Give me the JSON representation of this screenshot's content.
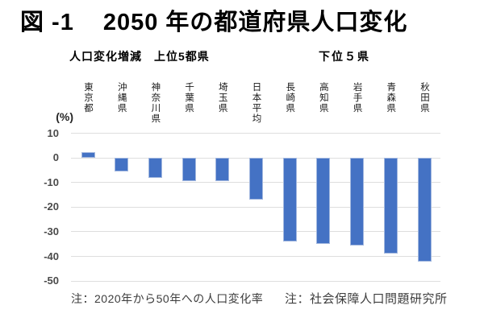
{
  "chart_data": {
    "type": "bar",
    "figure_label": "図 -1",
    "title": "2050 年の都道府県人口変化",
    "group_labels": {
      "left": "人口変化増減　上位5都県",
      "right": "下位５県"
    },
    "unit_label": "(%)",
    "categories": [
      "東京都",
      "沖縄県",
      "神奈川県",
      "千葉県",
      "埼玉県",
      "日本平均",
      "長崎県",
      "高知県",
      "岩手県",
      "青森県",
      "秋田県"
    ],
    "category_slugs": [
      "tokyo",
      "okinawa",
      "kanagawa",
      "chiba",
      "saitama",
      "japan-average",
      "nagasaki",
      "kochi",
      "iwate",
      "aomori",
      "akita"
    ],
    "values": [
      2.5,
      -5.5,
      -8,
      -9.4,
      -9.5,
      -17,
      -34,
      -35,
      -35.5,
      -39,
      -42
    ],
    "yticks": [
      10,
      0,
      -10,
      -20,
      -30,
      -40,
      -50
    ],
    "ylim": [
      -50,
      10
    ],
    "grid": true,
    "legend": "none",
    "bar_color": "#4472C4",
    "bar_border_color": "#A3B8DF",
    "gridline_color": "#DEDEDE",
    "notes": {
      "left": "注：2020年から50年への人口変化率",
      "right": "注：社会保障人口問題研究所"
    }
  }
}
